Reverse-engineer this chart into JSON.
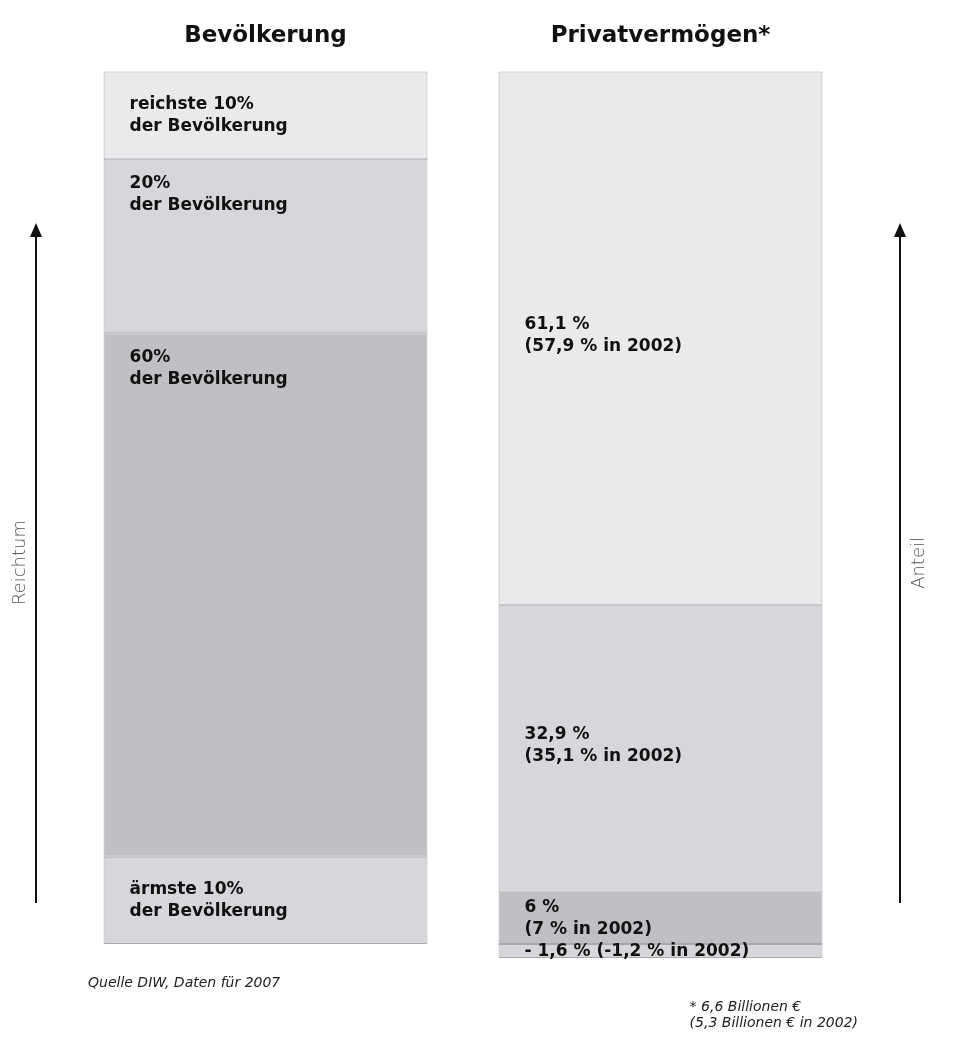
{
  "chart_data": {
    "type": "bar",
    "stacked": true,
    "categories": [
      "Bevölkerung",
      "Privatvermögen*"
    ],
    "ylabel": "Reichtum",
    "y2label": "Anteil",
    "series": [
      {
        "color": "#d6d7da",
        "values": [
          10,
          -1.6
        ],
        "value_labels": [
          "ärmste 10%\nder Bevölkerung",
          "- 1,6 % (-1,2 % in 2002)"
        ]
      },
      {
        "color": "#bfc0c3",
        "values": [
          60,
          6
        ],
        "value_labels": [
          "60%\nder Bevölkerung",
          "6 %\n(7 % in 2002)"
        ]
      },
      {
        "color": "#d6d7da",
        "values": [
          20,
          32.9
        ],
        "value_labels": [
          "20%\nder Bevölkerung",
          "32,9 %\n(35,1 % in 2002)"
        ]
      },
      {
        "color": "#e9eaec",
        "values": [
          10,
          61.1
        ],
        "value_labels": [
          "reichste 10%\nder Bevölkerung",
          "61,1 %\n(57,9 % in 2002)"
        ]
      }
    ],
    "annotations": [
      "Quelle DIW, Daten für 2007",
      "* 6,6 Billionen €\n(5,3 Billionen € in 2002)"
    ]
  }
}
